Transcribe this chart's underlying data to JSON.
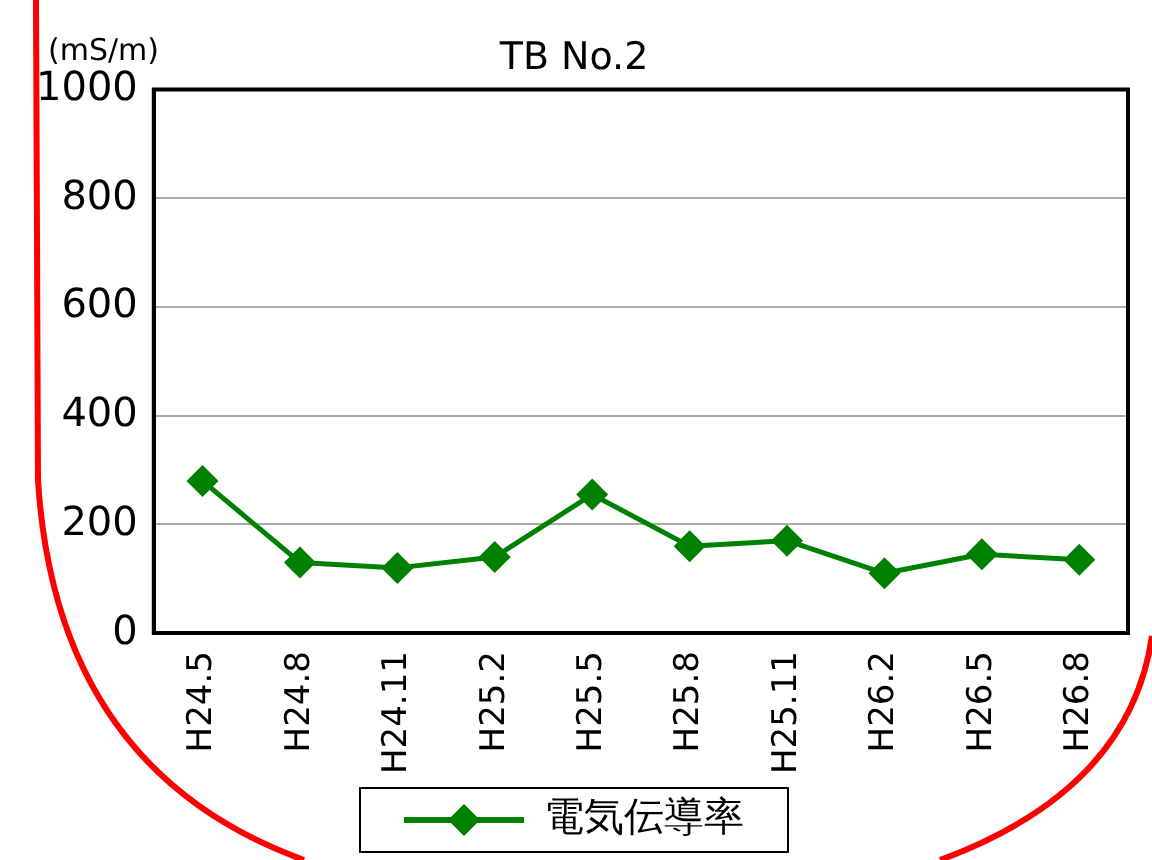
{
  "chart_data": {
    "type": "line",
    "title": "TB No.2",
    "ylabel": "(mS/m)",
    "categories": [
      "H24.5",
      "H24.8",
      "H24.11",
      "H25.2",
      "H25.5",
      "H25.8",
      "H25.11",
      "H26.2",
      "H26.5",
      "H26.8"
    ],
    "series": [
      {
        "name": "電気伝導率",
        "color": "#008000",
        "values": [
          280,
          130,
          120,
          140,
          255,
          160,
          170,
          110,
          145,
          135
        ]
      }
    ],
    "ylim": [
      0,
      1000
    ],
    "yticks": [
      0,
      200,
      400,
      600,
      800,
      1000
    ],
    "grid": "y",
    "legend": "bottom",
    "marker": "diamond",
    "line_style": "solid"
  }
}
